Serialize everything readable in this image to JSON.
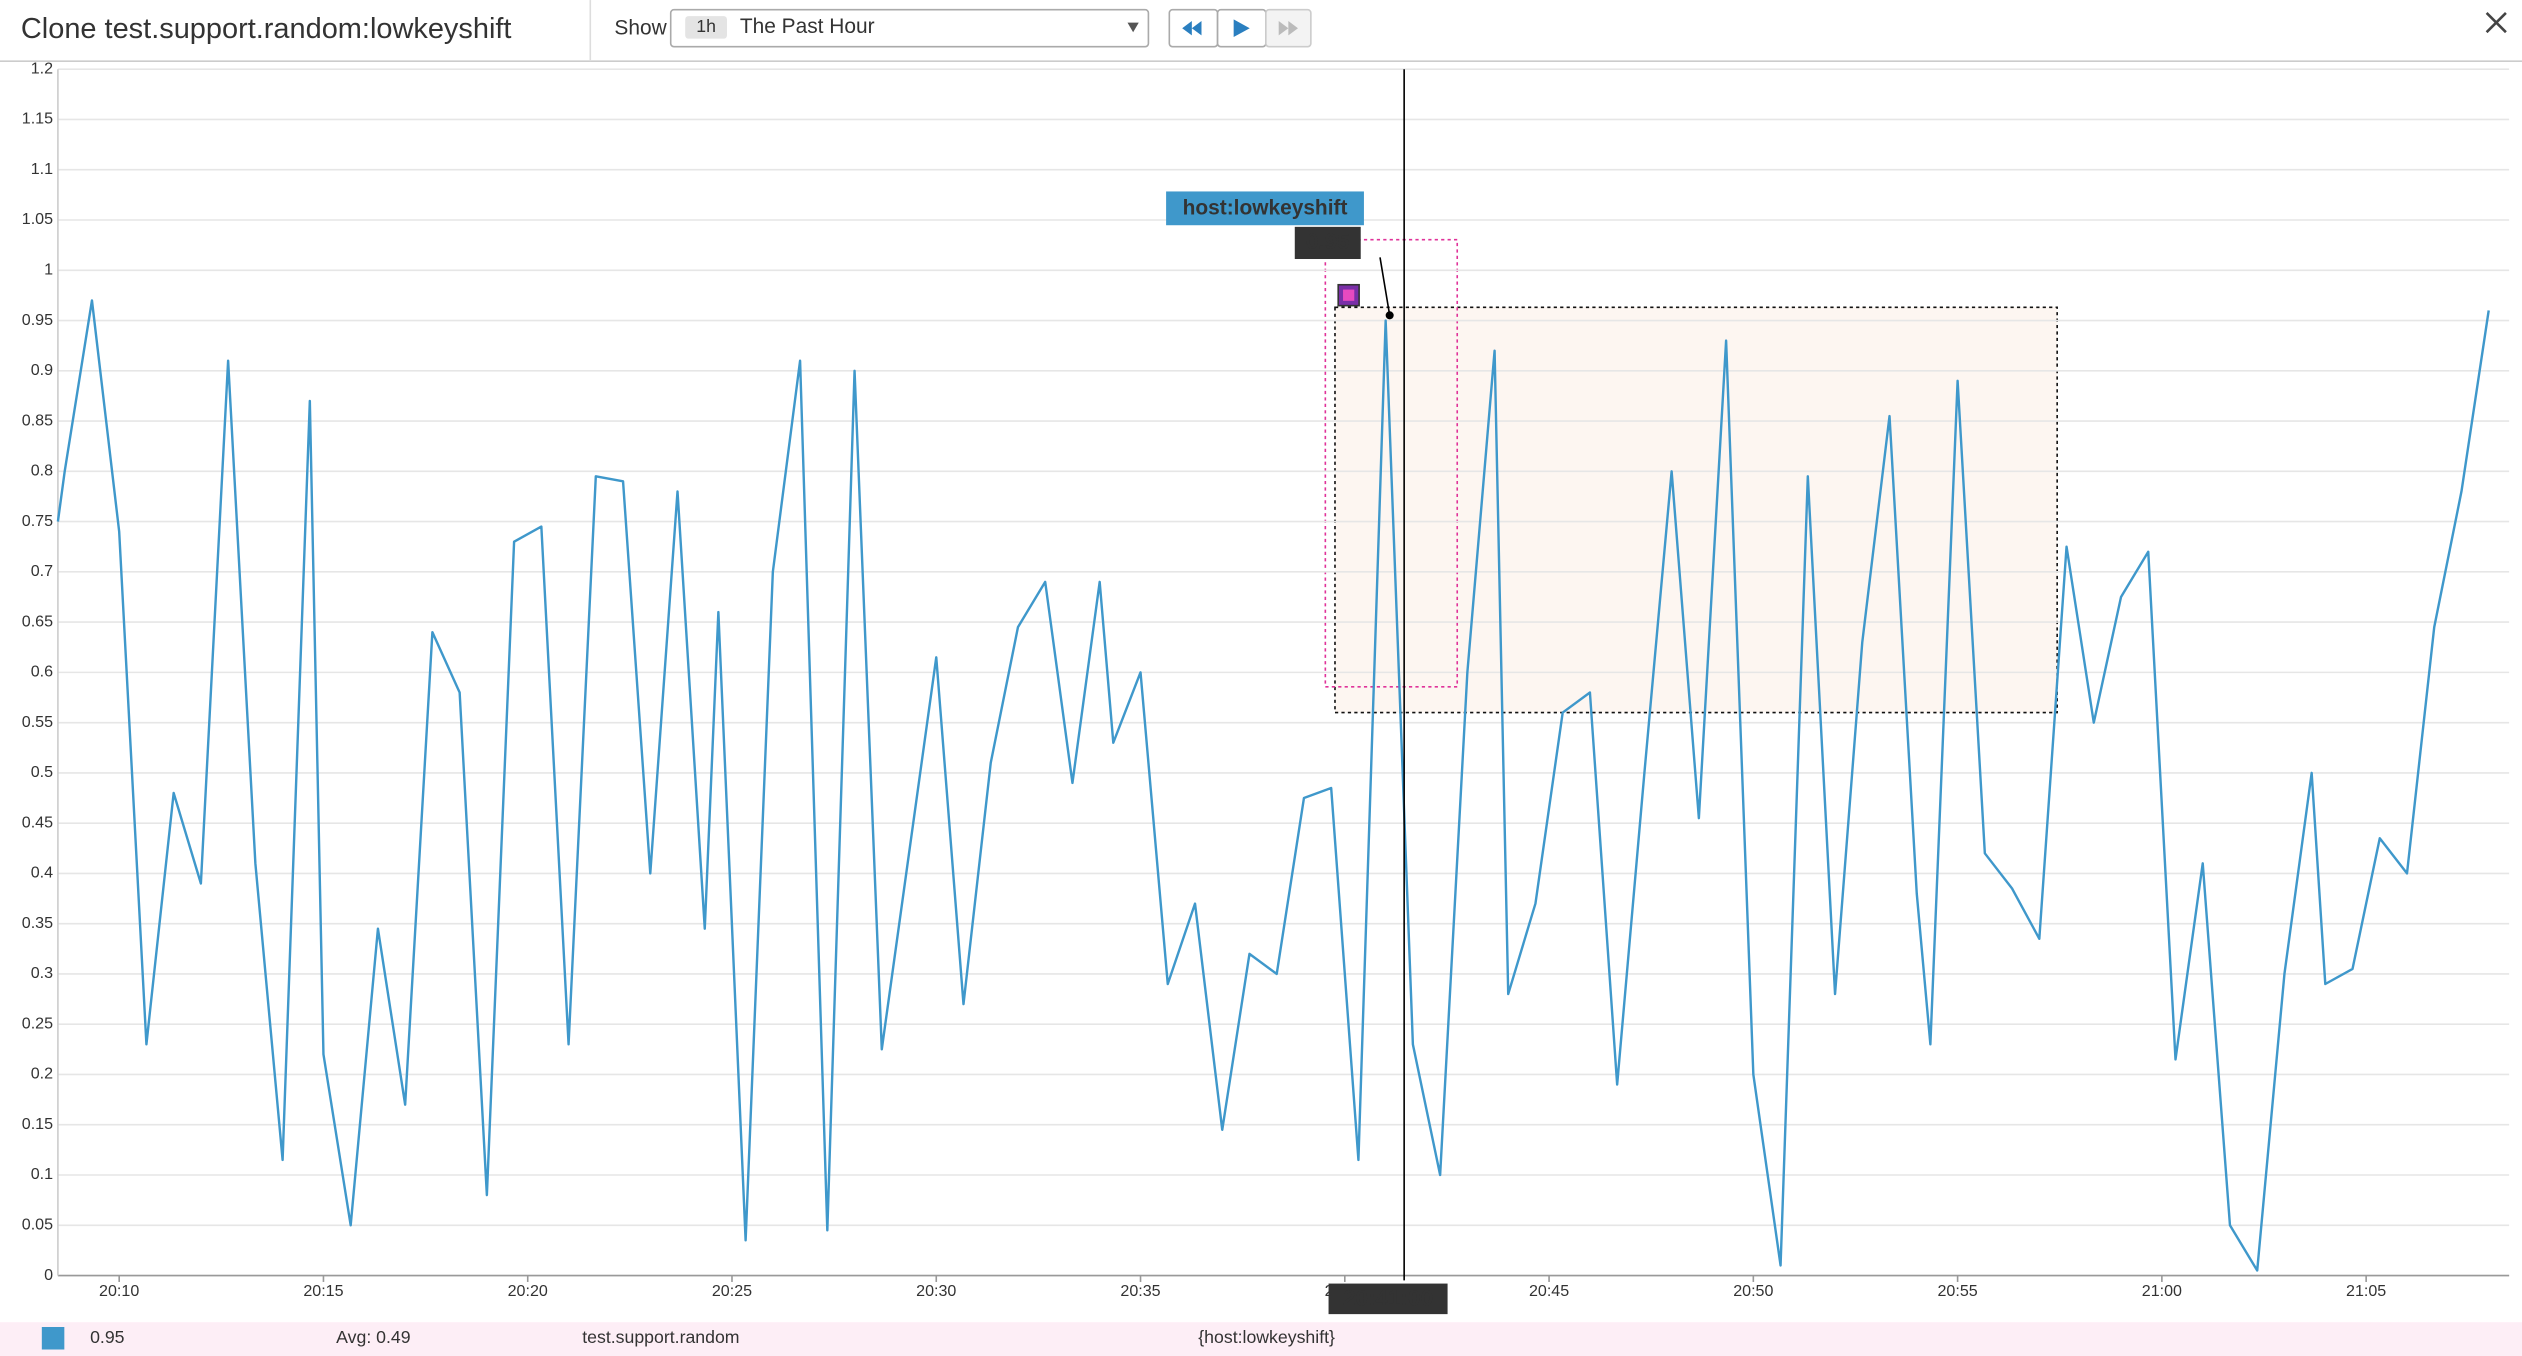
{
  "header": {
    "title": "Clone test.support.random:lowkeyshift",
    "show_label": "Show",
    "range_badge": "1h",
    "range_text": "The Past Hour"
  },
  "chart_data": {
    "type": "line",
    "x": [
      "20:08:30",
      "20:08:40",
      "20:09:20",
      "20:10:00",
      "20:10:40",
      "20:11:20",
      "20:12:00",
      "20:12:40",
      "20:13:20",
      "20:14:00",
      "20:14:40",
      "20:15:00",
      "20:15:40",
      "20:16:20",
      "20:17:00",
      "20:17:40",
      "20:18:20",
      "20:19:00",
      "20:19:40",
      "20:20:20",
      "20:21:00",
      "20:21:40",
      "20:22:20",
      "20:23:00",
      "20:23:40",
      "20:24:20",
      "20:24:40",
      "20:25:20",
      "20:26:00",
      "20:26:40",
      "20:27:20",
      "20:28:00",
      "20:28:40",
      "20:29:20",
      "20:30:00",
      "20:30:40",
      "20:31:20",
      "20:32:00",
      "20:32:40",
      "20:33:20",
      "20:34:00",
      "20:34:20",
      "20:35:00",
      "20:35:40",
      "20:36:20",
      "20:37:00",
      "20:37:40",
      "20:38:20",
      "20:39:00",
      "20:39:40",
      "20:40:20",
      "20:41:00",
      "20:41:40",
      "20:42:20",
      "20:43:00",
      "20:43:40",
      "20:44:00",
      "20:44:40",
      "20:45:20",
      "20:46:00",
      "20:46:40",
      "20:47:20",
      "20:48:00",
      "20:48:40",
      "20:49:20",
      "20:50:00",
      "20:50:40",
      "20:51:20",
      "20:52:00",
      "20:52:40",
      "20:53:20",
      "20:54:00",
      "20:54:20",
      "20:55:00",
      "20:55:40",
      "20:56:20",
      "20:57:00",
      "20:57:40",
      "20:58:20",
      "20:59:00",
      "20:59:40",
      "21:00:20",
      "21:01:00",
      "21:01:40",
      "21:02:20",
      "21:03:00",
      "21:03:40",
      "21:04:00",
      "21:04:40",
      "21:05:20",
      "21:06:00",
      "21:06:40",
      "21:07:20",
      "21:08:00"
    ],
    "series": [
      {
        "name": "host:lowkeyshift",
        "color": "#3f98cb",
        "values": [
          0.75,
          0.8,
          0.97,
          0.74,
          0.23,
          0.48,
          0.39,
          0.91,
          0.41,
          0.115,
          0.87,
          0.22,
          0.05,
          0.345,
          0.17,
          0.64,
          0.58,
          0.08,
          0.73,
          0.745,
          0.23,
          0.795,
          0.79,
          0.4,
          0.78,
          0.345,
          0.66,
          0.035,
          0.7,
          0.91,
          0.045,
          0.9,
          0.225,
          0.42,
          0.615,
          0.27,
          0.51,
          0.645,
          0.69,
          0.49,
          0.69,
          0.53,
          0.6,
          0.29,
          0.37,
          0.145,
          0.32,
          0.3,
          0.475,
          0.485,
          0.115,
          0.95,
          0.23,
          0.1,
          0.6,
          0.92,
          0.28,
          0.37,
          0.56,
          0.58,
          0.19,
          0.5,
          0.8,
          0.455,
          0.93,
          0.2,
          0.01,
          0.795,
          0.28,
          0.63,
          0.855,
          0.38,
          0.23,
          0.89,
          0.42,
          0.385,
          0.335,
          0.725,
          0.55,
          0.675,
          0.72,
          0.215,
          0.41,
          0.05,
          0.005,
          0.3,
          0.5,
          0.29,
          0.305,
          0.435,
          0.4,
          0.645,
          0.78,
          0.96
        ]
      }
    ],
    "xlim": [
      "20:08:30",
      "21:08:30"
    ],
    "xticks": [
      "20:10",
      "20:15",
      "20:20",
      "20:25",
      "20:30",
      "20:35",
      "20:40",
      "20:45",
      "20:50",
      "20:55",
      "21:00",
      "21:05"
    ],
    "ylim": [
      0,
      1.2
    ],
    "yticks": [
      0,
      0.05,
      0.1,
      0.15,
      0.2,
      0.25,
      0.3,
      0.35,
      0.4,
      0.45,
      0.5,
      0.55,
      0.6,
      0.65,
      0.7,
      0.75,
      0.8,
      0.85,
      0.9,
      0.95,
      1,
      1.05,
      1.1,
      1.15,
      1.2
    ],
    "grid": true
  },
  "legend_row": {
    "avg": "Avg: 0.49",
    "metric": "test.support.random",
    "scope": "{host:lowkeyshift}"
  }
}
